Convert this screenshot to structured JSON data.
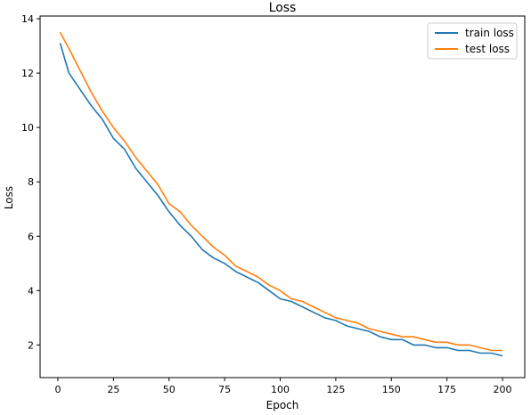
{
  "chart_data": {
    "type": "line",
    "title": "Loss",
    "xlabel": "Epoch",
    "ylabel": "Loss",
    "xlim": [
      -8,
      210
    ],
    "ylim": [
      0.8,
      14.1
    ],
    "xticks": [
      0,
      25,
      50,
      75,
      100,
      125,
      150,
      175,
      200
    ],
    "yticks": [
      2,
      4,
      6,
      8,
      10,
      12,
      14
    ],
    "grid": false,
    "legend_position": "top-right",
    "series": [
      {
        "name": "train loss",
        "color": "#1f77b4",
        "x": [
          1,
          5,
          10,
          15,
          20,
          25,
          30,
          35,
          40,
          45,
          50,
          55,
          60,
          65,
          70,
          75,
          80,
          85,
          90,
          95,
          100,
          105,
          110,
          115,
          120,
          125,
          130,
          135,
          140,
          145,
          150,
          155,
          160,
          165,
          170,
          175,
          180,
          185,
          190,
          195,
          200
        ],
        "values": [
          13.1,
          12.0,
          11.4,
          10.8,
          10.3,
          9.6,
          9.2,
          8.5,
          8.0,
          7.5,
          6.9,
          6.4,
          6.0,
          5.5,
          5.2,
          5.0,
          4.7,
          4.5,
          4.3,
          4.0,
          3.7,
          3.6,
          3.4,
          3.2,
          3.0,
          2.9,
          2.7,
          2.6,
          2.5,
          2.3,
          2.2,
          2.2,
          2.0,
          2.0,
          1.9,
          1.9,
          1.8,
          1.8,
          1.7,
          1.7,
          1.6
        ]
      },
      {
        "name": "test loss",
        "color": "#ff7f0e",
        "x": [
          1,
          5,
          10,
          15,
          20,
          25,
          30,
          35,
          40,
          45,
          50,
          55,
          60,
          65,
          70,
          75,
          80,
          85,
          90,
          95,
          100,
          105,
          110,
          115,
          120,
          125,
          130,
          135,
          140,
          145,
          150,
          155,
          160,
          165,
          170,
          175,
          180,
          185,
          190,
          195,
          200
        ],
        "values": [
          13.5,
          12.9,
          12.1,
          11.3,
          10.6,
          10.0,
          9.5,
          8.9,
          8.4,
          7.9,
          7.2,
          6.9,
          6.4,
          6.0,
          5.6,
          5.3,
          4.9,
          4.7,
          4.5,
          4.2,
          4.0,
          3.7,
          3.6,
          3.4,
          3.2,
          3.0,
          2.9,
          2.8,
          2.6,
          2.5,
          2.4,
          2.3,
          2.3,
          2.2,
          2.1,
          2.1,
          2.0,
          2.0,
          1.9,
          1.8,
          1.8
        ]
      }
    ]
  }
}
